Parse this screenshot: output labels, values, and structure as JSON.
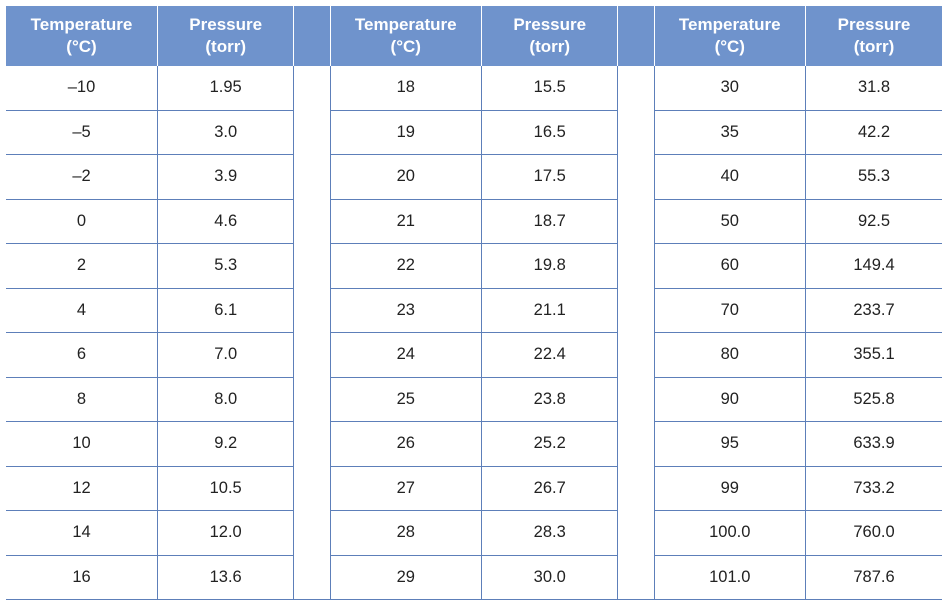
{
  "header": {
    "temperature": [
      "Temperature",
      "(°C)"
    ],
    "pressure": [
      "Pressure",
      "(torr)"
    ]
  },
  "rows": [
    [
      "–10",
      "1.95",
      "18",
      "15.5",
      "30",
      "31.8"
    ],
    [
      "–5",
      "3.0",
      "19",
      "16.5",
      "35",
      "42.2"
    ],
    [
      "–2",
      "3.9",
      "20",
      "17.5",
      "40",
      "55.3"
    ],
    [
      "0",
      "4.6",
      "21",
      "18.7",
      "50",
      "92.5"
    ],
    [
      "2",
      "5.3",
      "22",
      "19.8",
      "60",
      "149.4"
    ],
    [
      "4",
      "6.1",
      "23",
      "21.1",
      "70",
      "233.7"
    ],
    [
      "6",
      "7.0",
      "24",
      "22.4",
      "80",
      "355.1"
    ],
    [
      "8",
      "8.0",
      "25",
      "23.8",
      "90",
      "525.8"
    ],
    [
      "10",
      "9.2",
      "26",
      "25.2",
      "95",
      "633.9"
    ],
    [
      "12",
      "10.5",
      "27",
      "26.7",
      "99",
      "733.2"
    ],
    [
      "14",
      "12.0",
      "28",
      "28.3",
      "100.0",
      "760.0"
    ],
    [
      "16",
      "13.6",
      "29",
      "30.0",
      "101.0",
      "787.6"
    ]
  ]
}
